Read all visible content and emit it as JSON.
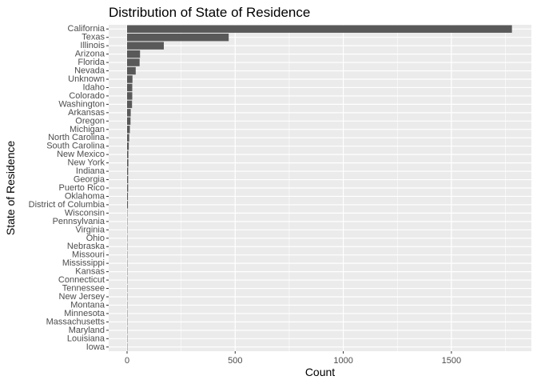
{
  "colors": {
    "panel_background": "#ebebeb",
    "grid_major": "#ffffff",
    "bar_fill": "#595959",
    "tick_text": "#4d4d4d"
  },
  "chart_data": {
    "type": "bar",
    "orientation": "horizontal",
    "title": "Distribution of State of Residence",
    "xlabel": "Count",
    "ylabel": "State of Residence",
    "xlim": [
      -85,
      1870
    ],
    "x_ticks": [
      0,
      500,
      1000,
      1500
    ],
    "grid": true,
    "categories": [
      "California",
      "Texas",
      "Illinois",
      "Arizona",
      "Florida",
      "Nevada",
      "Unknown",
      "Idaho",
      "Colorado",
      "Washington",
      "Arkansas",
      "Oregon",
      "Michigan",
      "North Carolina",
      "South Carolina",
      "New Mexico",
      "New York",
      "Indiana",
      "Georgia",
      "Puerto Rico",
      "Oklahoma",
      "District of Columbia",
      "Wisconsin",
      "Pennsylvania",
      "Virginia",
      "Ohio",
      "Nebraska",
      "Missouri",
      "Mississippi",
      "Kansas",
      "Connecticut",
      "Tennessee",
      "New Jersey",
      "Montana",
      "Minnesota",
      "Massachusetts",
      "Maryland",
      "Louisiana",
      "Iowa"
    ],
    "values": [
      1780,
      470,
      170,
      60,
      58,
      40,
      25,
      24,
      24,
      23,
      17,
      16,
      13,
      10,
      8,
      6,
      6,
      5,
      5,
      5,
      4,
      4,
      1,
      1,
      1,
      1,
      1,
      1,
      1,
      1,
      1,
      1,
      1,
      1,
      1,
      1,
      1,
      1,
      1
    ]
  }
}
